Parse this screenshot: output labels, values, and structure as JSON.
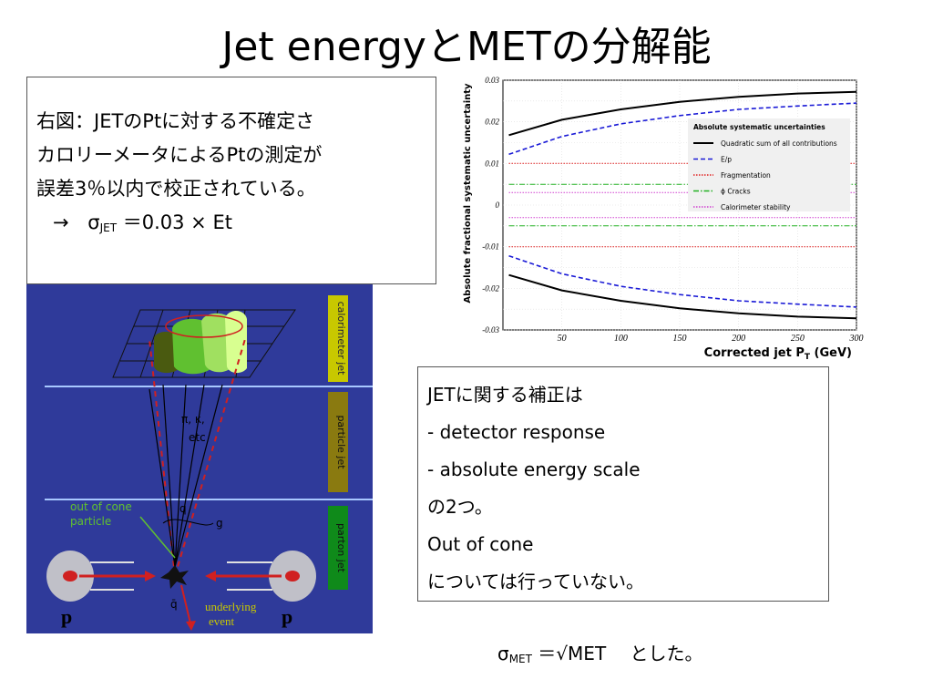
{
  "title": "Jet energyとMETの分解能",
  "left_box": {
    "line1": "右図：JETのPtに対する不確定さ",
    "line2": "カロリーメータによるPtの測定が",
    "line3": "誤差3％以内で校正されている。",
    "line4_arrow": "→",
    "sigma": "σ",
    "sigma_sub": "JET",
    "line4_rest": " ＝0.03 × Et"
  },
  "right_box": {
    "line1": "JETに関する補正は",
    "line2": " - detector response",
    "line3": " - absolute energy scale",
    "line4": "の2つ。",
    "line5": "Out of cone",
    "line6": "については行っていない。"
  },
  "footer": {
    "sigma": "σ",
    "sub": "MET",
    "rest": " ＝√MET　 とした。"
  },
  "diagram": {
    "labels": {
      "calorimeter": "calorimeter jet",
      "particle": "particle jet",
      "parton": "parton jet",
      "pi_k": "π, κ,",
      "etc": "etc",
      "q_top": "q",
      "g": "g",
      "out_of_cone": "out of cone",
      "particle_word": "particle",
      "q_bar": "q̄",
      "underlying": "underlying",
      "event": "event",
      "p_left": "p",
      "p_right": "p"
    },
    "colors": {
      "background": "#2f3a9a",
      "cal_box": "#c8c800",
      "particle_box": "#8a7a10",
      "parton_box": "#0f8a1a"
    }
  },
  "chart_data": {
    "type": "line",
    "xlabel": "Corrected jet P",
    "xlabel_sub": "T",
    "xlabel_unit": " (GeV)",
    "ylabel": "Absolute fractional systematic uncertainty",
    "xlim": [
      0,
      300
    ],
    "ylim": [
      -0.03,
      0.03
    ],
    "x_ticks": [
      "50",
      "100",
      "150",
      "200",
      "250",
      "300"
    ],
    "y_ticks": [
      "0.03",
      "0.02",
      "0.01",
      "0",
      "-0.01",
      "-0.02",
      "-0.03"
    ],
    "legend_title": "Absolute systematic uncertainties",
    "legend_position": "right",
    "series": [
      {
        "name": "Quadratic sum of all contributions",
        "color": "#000000",
        "style": "solid",
        "x": [
          5,
          50,
          100,
          150,
          200,
          250,
          300
        ],
        "y": [
          0.0168,
          0.0205,
          0.023,
          0.0248,
          0.026,
          0.0268,
          0.0272
        ],
        "mirror": true
      },
      {
        "name": "E/p",
        "color": "#1a1ad6",
        "style": "dashed",
        "x": [
          5,
          50,
          100,
          150,
          200,
          250,
          300
        ],
        "y": [
          0.0122,
          0.0165,
          0.0195,
          0.0215,
          0.023,
          0.0238,
          0.0245
        ],
        "mirror": true
      },
      {
        "name": "Fragmentation",
        "color": "#e02020",
        "style": "dotted",
        "x": [
          5,
          300
        ],
        "y": [
          0.01,
          0.01
        ],
        "mirror": true
      },
      {
        "name": "ϕ Cracks",
        "color": "#20b020",
        "style": "dashdot",
        "x": [
          5,
          300
        ],
        "y": [
          0.005,
          0.005
        ],
        "mirror": true
      },
      {
        "name": "Calorimeter stability",
        "color": "#d040d0",
        "style": "dotted",
        "x": [
          5,
          300
        ],
        "y": [
          0.003,
          0.003
        ],
        "mirror": true
      }
    ]
  }
}
